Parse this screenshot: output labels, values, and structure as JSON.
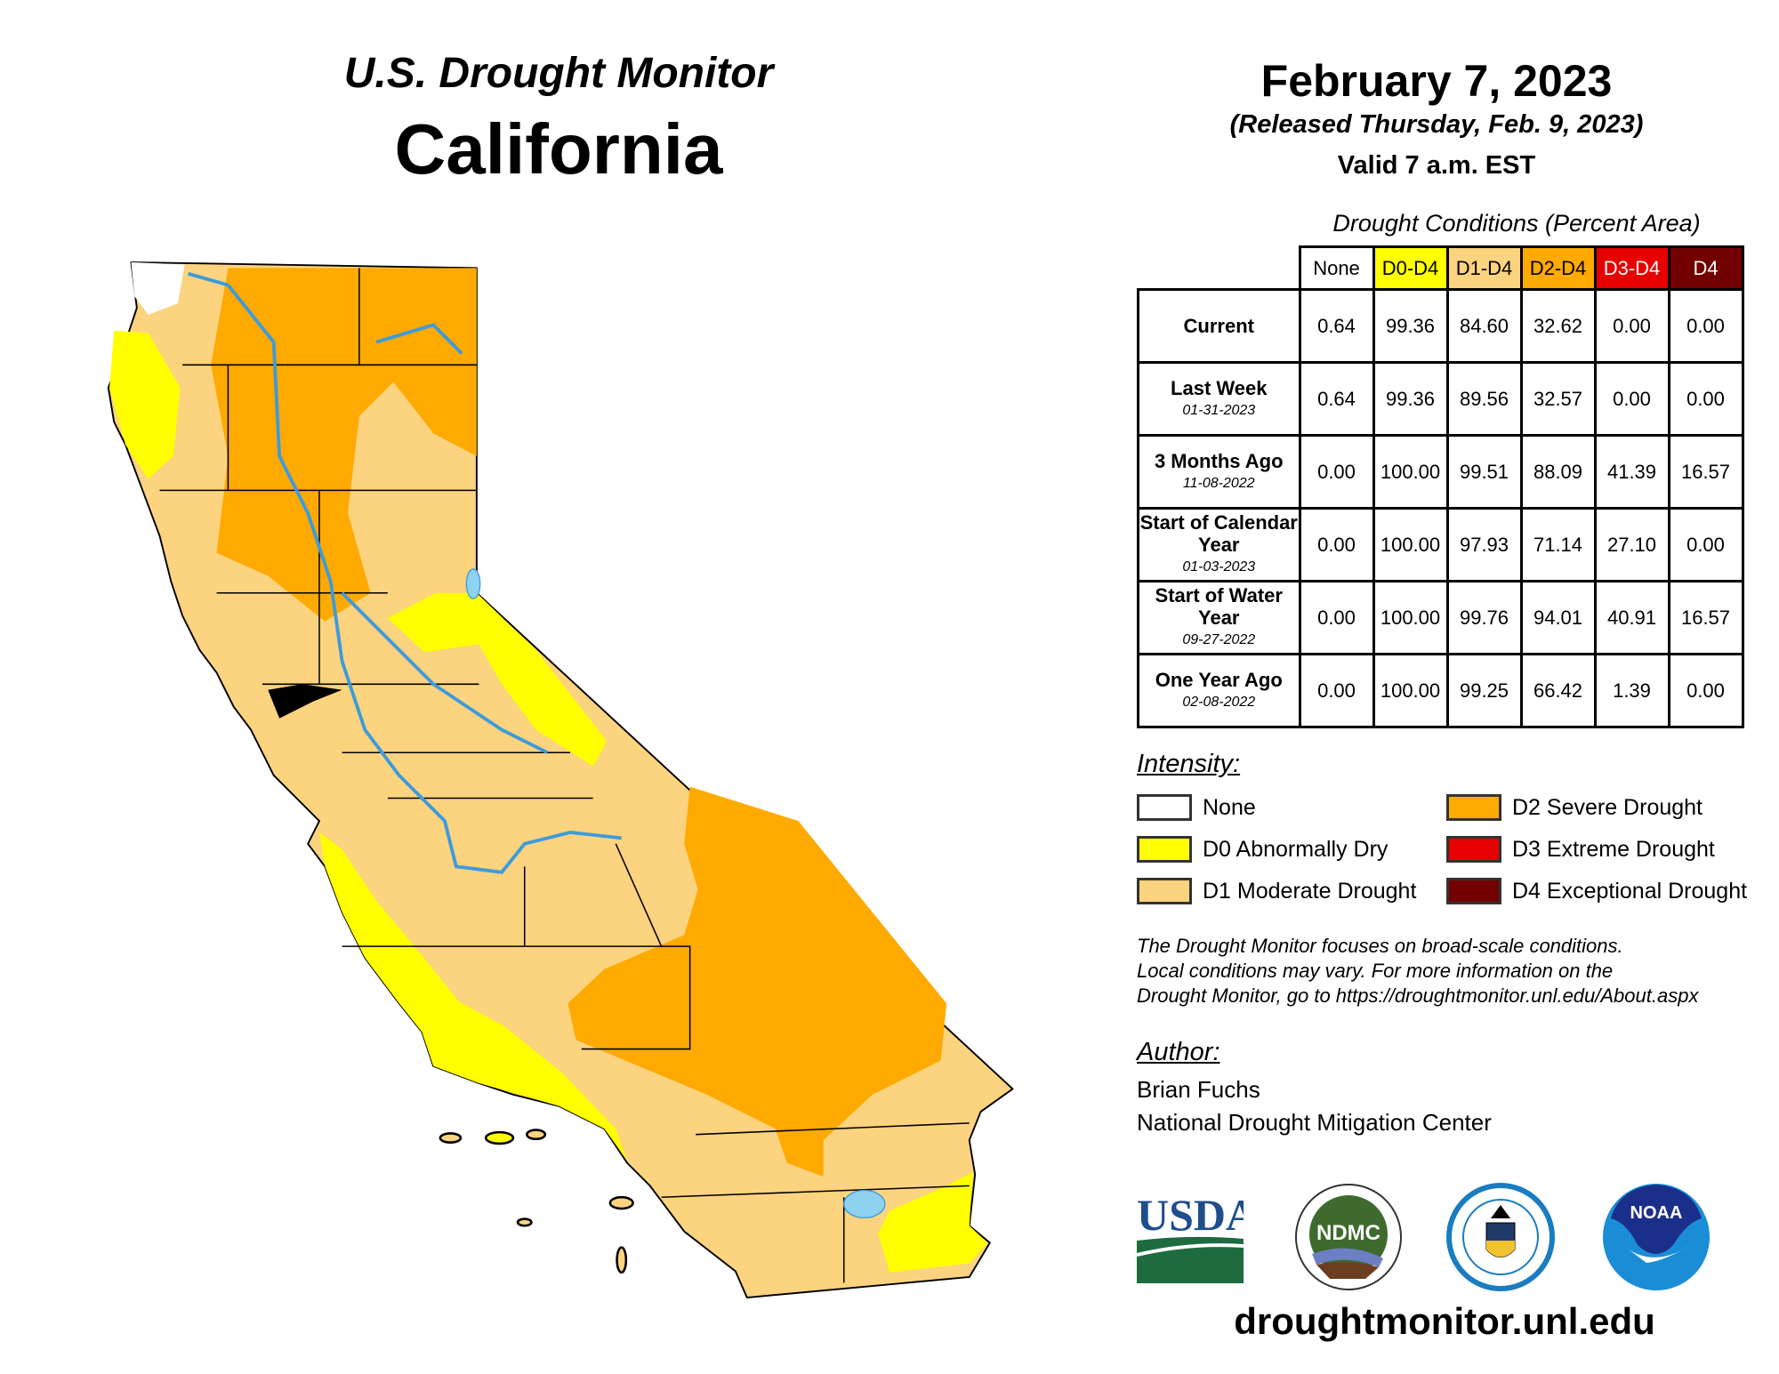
{
  "header": {
    "title": "U.S. Drought Monitor",
    "state": "California"
  },
  "date": {
    "map_date": "February 7, 2023",
    "released": "(Released Thursday, Feb. 9, 2023)",
    "valid": "Valid 7 a.m. EST"
  },
  "table": {
    "caption": "Drought Conditions (Percent Area)",
    "columns": [
      {
        "label": "None",
        "bg": "#FFFFFF",
        "fg": "#000000"
      },
      {
        "label": "D0-D4",
        "bg": "#FFFF00",
        "fg": "#000000"
      },
      {
        "label": "D1-D4",
        "bg": "#FCD37F",
        "fg": "#000000"
      },
      {
        "label": "D2-D4",
        "bg": "#FFAA00",
        "fg": "#000000"
      },
      {
        "label": "D3-D4",
        "bg": "#E60000",
        "fg": "#FFFFFF"
      },
      {
        "label": "D4",
        "bg": "#730000",
        "fg": "#FFFFFF"
      }
    ],
    "rows": [
      {
        "label": "Current",
        "date": "",
        "values": [
          "0.64",
          "99.36",
          "84.60",
          "32.62",
          "0.00",
          "0.00"
        ]
      },
      {
        "label": "Last Week",
        "date": "01-31-2023",
        "values": [
          "0.64",
          "99.36",
          "89.56",
          "32.57",
          "0.00",
          "0.00"
        ]
      },
      {
        "label": "3 Months Ago",
        "date": "11-08-2022",
        "values": [
          "0.00",
          "100.00",
          "99.51",
          "88.09",
          "41.39",
          "16.57"
        ]
      },
      {
        "label": "Start of Calendar Year",
        "date": "01-03-2023",
        "values": [
          "0.00",
          "100.00",
          "97.93",
          "71.14",
          "27.10",
          "0.00"
        ]
      },
      {
        "label": "Start of Water Year",
        "date": "09-27-2022",
        "values": [
          "0.00",
          "100.00",
          "99.76",
          "94.01",
          "40.91",
          "16.57"
        ]
      },
      {
        "label": "One Year Ago",
        "date": "02-08-2022",
        "values": [
          "0.00",
          "100.00",
          "99.25",
          "66.42",
          "1.39",
          "0.00"
        ]
      }
    ]
  },
  "legend": {
    "title": "Intensity:",
    "items": [
      {
        "label": "None",
        "color": "#FFFFFF"
      },
      {
        "label": "D0 Abnormally Dry",
        "color": "#FFFF00"
      },
      {
        "label": "D1 Moderate Drought",
        "color": "#FCD37F"
      },
      {
        "label": "D2 Severe Drought",
        "color": "#FFAA00"
      },
      {
        "label": "D3 Extreme Drought",
        "color": "#E60000"
      },
      {
        "label": "D4 Exceptional Drought",
        "color": "#730000"
      }
    ]
  },
  "note": [
    "The Drought Monitor focuses on broad-scale conditions.",
    "Local conditions may vary. For more information on the",
    "Drought Monitor, go to https://droughtmonitor.unl.edu/About.aspx"
  ],
  "author": {
    "title": "Author:",
    "name": "Brian Fuchs",
    "org": "National Drought Mitigation Center"
  },
  "logos": {
    "usda": "USDA",
    "ndmc": "NDMC",
    "doc": "Department of Commerce",
    "noaa": "NOAA"
  },
  "url": "droughtmonitor.unl.edu",
  "colors": {
    "river": "#3D9BDB",
    "county": "#000000"
  }
}
